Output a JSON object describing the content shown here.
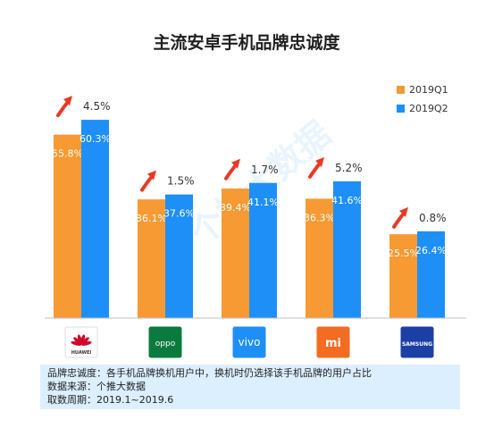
{
  "chart_data": {
    "type": "bar",
    "title": "主流安卓手机品牌忠诚度",
    "categories": [
      "HUAWEI",
      "OPPO",
      "vivo",
      "mi",
      "SAMSUNG"
    ],
    "series": [
      {
        "name": "2019Q1",
        "values": [
          55.8,
          36.1,
          39.4,
          36.3,
          25.5
        ],
        "labels": [
          "55.8%",
          "36.1%",
          "39.4%",
          "36.3%",
          "25.5%"
        ],
        "color": "#f79a33"
      },
      {
        "name": "2019Q2",
        "values": [
          60.3,
          37.6,
          41.1,
          41.6,
          26.4
        ],
        "labels": [
          "60.3%",
          "37.6%",
          "41.1%",
          "41.6%",
          "26.4%"
        ],
        "color": "#1e8ff7"
      }
    ],
    "deltas": [
      "4.5%",
      "1.5%",
      "1.7%",
      "5.2%",
      "0.8%"
    ],
    "ylim": [
      0,
      75
    ],
    "grid": false,
    "legend_position": "top-right",
    "arrow_color": "#e83a23"
  },
  "logos": [
    {
      "name": "huawei",
      "text": "HUAWEI",
      "bg": "#ffffff",
      "fg": "#cf0a2c",
      "icon": "huawei-petal-icon"
    },
    {
      "name": "oppo",
      "text": "oppo",
      "bg": "#0b7a3e",
      "fg": "#ffffff",
      "icon": "oppo-logo-icon"
    },
    {
      "name": "vivo",
      "text": "vivo",
      "bg": "#1e8ff7",
      "fg": "#ffffff",
      "icon": "vivo-logo-icon"
    },
    {
      "name": "mi",
      "text": "mi",
      "bg": "#f26c22",
      "fg": "#ffffff",
      "icon": "mi-logo-icon"
    },
    {
      "name": "samsung",
      "text": "SAMSUNG",
      "bg": "#1b3fa5",
      "fg": "#ffffff",
      "icon": "samsung-logo-icon"
    }
  ],
  "watermark": "个推大数据",
  "footnote": {
    "definition": "品牌忠诚度：各手机品牌换机用户中，换机时仍选择该手机品牌的用户占比",
    "source": "数据来源：个推大数据",
    "period": "取数周期：2019.1~2019.6"
  }
}
